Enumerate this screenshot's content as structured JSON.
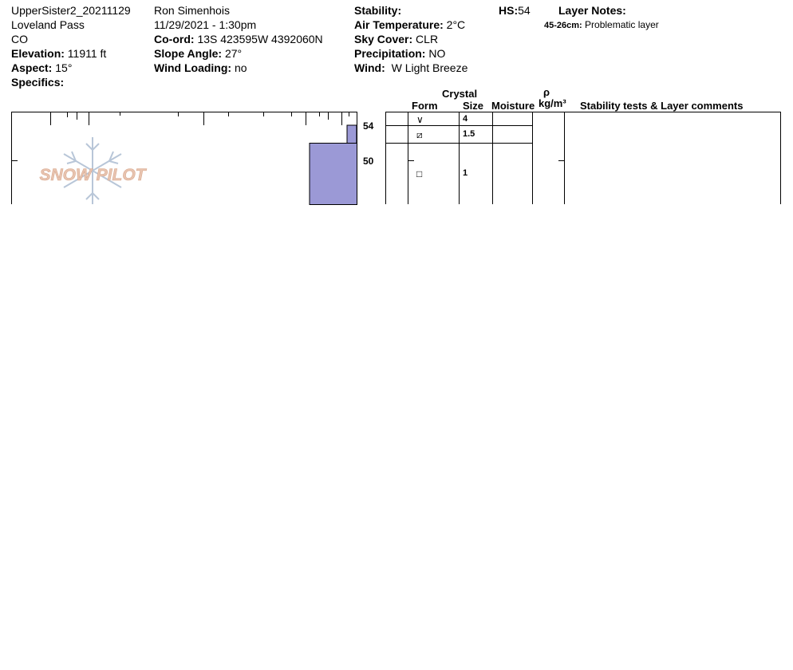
{
  "header": {
    "col1": {
      "pit_name": "UpperSister2_20211129",
      "location": "Loveland Pass",
      "state": "CO",
      "elevation_label": "Elevation:",
      "elevation_value": "11911 ft",
      "aspect_label": "Aspect:",
      "aspect_value": "15°",
      "specifics_label": "Specifics:"
    },
    "col2": {
      "observer": "Ron Simenhois",
      "datetime": "11/29/2021 - 1:30pm",
      "coord_label": "Co-ord:",
      "coord_value": "13S 423595W 4392060N",
      "slope_label": "Slope Angle:",
      "slope_value": "27°",
      "wind_loading_label": "Wind Loading:",
      "wind_loading_value": "no"
    },
    "col3": {
      "stability_label": "Stability:",
      "air_temp_label": "Air Temperature:",
      "air_temp_value": "2°C",
      "sky_label": "Sky Cover:",
      "sky_value": "CLR",
      "precip_label": "Precipitation:",
      "precip_value": "NO",
      "wind_label": "Wind:",
      "wind_value": "W Light Breeze"
    },
    "hs_label": "HS:",
    "hs_value": "54",
    "layer_notes_label": "Layer Notes:",
    "layer_note_range": "45-26cm:",
    "layer_note_text": "Problematic layer"
  },
  "table_headers": {
    "crystal": "Crystal",
    "form": "Form",
    "size": "Size",
    "moisture": "Moisture",
    "rho": "ρ",
    "density_unit": "kg/m³",
    "comments": "Stability tests & Layer comments"
  },
  "depth_labels": [
    "54",
    "50"
  ],
  "layers": [
    {
      "form_symbol": "∨",
      "size": "4"
    },
    {
      "form_symbol": "⧄",
      "size": "1.5"
    },
    {
      "form_symbol": "□",
      "size": "1"
    }
  ],
  "watermark": "SNOW PILOT",
  "colors": {
    "hardness_fill": "#9b99d6",
    "watermark_text": "#e8c4b0",
    "snowflake": "#b8c6d8"
  }
}
